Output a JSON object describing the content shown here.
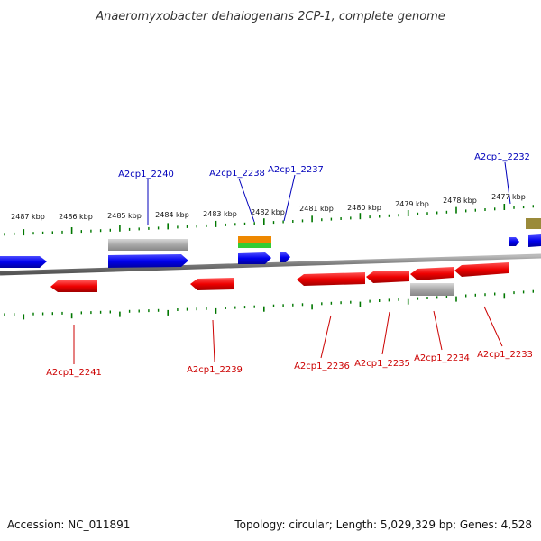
{
  "title": "Anaeromyxobacter dehalogenans 2CP-1, complete genome",
  "footer": {
    "accession": "Accession: NC_011891",
    "summary": "Topology: circular; Length: 5,029,329 bp; Genes: 4,528"
  },
  "colors": {
    "forward_gene": "#0000ee",
    "reverse_gene": "#ee0000",
    "other_feature": "#a8a8a8",
    "orange_feature": "#ee8800",
    "green_feature": "#33cc33",
    "olive_feature": "#9a8a3a",
    "backbone": "#888888",
    "ticks": "#007700",
    "forward_label": "#0000bb",
    "reverse_label": "#cc0000"
  },
  "ruler": [
    {
      "label": "2487 kbp"
    },
    {
      "label": "2486 kbp"
    },
    {
      "label": "2485 kbp"
    },
    {
      "label": "2484 kbp"
    },
    {
      "label": "2483 kbp"
    },
    {
      "label": "2482 kbp"
    },
    {
      "label": "2481 kbp"
    },
    {
      "label": "2480 kbp"
    },
    {
      "label": "2479 kbp"
    },
    {
      "label": "2478 kbp"
    },
    {
      "label": "2477 kbp"
    }
  ],
  "genes_forward": [
    {
      "name": "A2cp1_2240"
    },
    {
      "name": "A2cp1_2238"
    },
    {
      "name": "A2cp1_2237"
    },
    {
      "name": "A2cp1_2232"
    }
  ],
  "genes_reverse": [
    {
      "name": "A2cp1_2241"
    },
    {
      "name": "A2cp1_2239"
    },
    {
      "name": "A2cp1_2236"
    },
    {
      "name": "A2cp1_2235"
    },
    {
      "name": "A2cp1_2234"
    },
    {
      "name": "A2cp1_2233"
    }
  ]
}
